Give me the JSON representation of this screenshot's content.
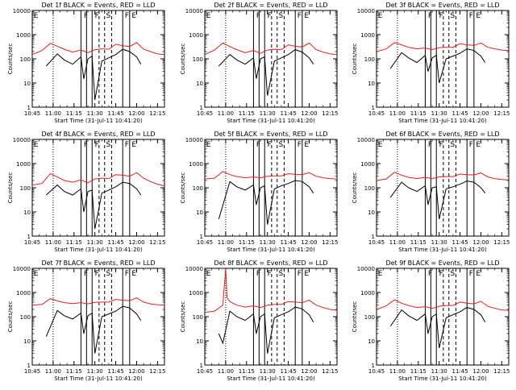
{
  "figure": {
    "ylabel": "Counts/sec",
    "x_ticks": [
      "10:45",
      "11:00",
      "11:15",
      "11:30",
      "11:45",
      "12:00",
      "12:15"
    ],
    "y_ticks": [
      "1",
      "10",
      "100",
      "1000",
      "10000"
    ],
    "start_label": "Start Time (31-Jul-11 10:41:20)",
    "colors": {
      "events": "#000000",
      "lld": "#e02020"
    }
  },
  "panels": [
    {
      "title": "Det 1f BLACK = Events, RED = LLD",
      "top_letters": [
        "E",
        "F",
        "F",
        "S",
        "F",
        "E"
      ]
    },
    {
      "title": "Det 2f BLACK = Events, RED = LLD",
      "top_letters": [
        "E",
        "F",
        "F",
        "S",
        "F",
        "E"
      ]
    },
    {
      "title": "Det 3f BLACK = Events, RED = LLD",
      "top_letters": [
        "E",
        "F",
        "F",
        "S",
        "F",
        "E"
      ]
    },
    {
      "title": "Det 4f BLACK = Events, RED = LLD",
      "top_letters": [
        "E",
        "F",
        "F",
        "S",
        "F",
        "E"
      ]
    },
    {
      "title": "Det 5f BLACK = Events, RED = LLD",
      "top_letters": [
        "E",
        "F",
        "F",
        "S",
        "F",
        "E"
      ]
    },
    {
      "title": "Det 6f BLACK = Events, RED = LLD",
      "top_letters": [
        "E",
        "F",
        "F",
        "S",
        "F",
        "E"
      ]
    },
    {
      "title": "Det 7f BLACK = Events, RED = LLD",
      "top_letters": [
        "E",
        "F",
        "F",
        "S",
        "F",
        "E"
      ]
    },
    {
      "title": "Det 8f BLACK = Events, RED = LLD",
      "top_letters": [
        "E",
        "F",
        "F",
        "S",
        "F",
        "E"
      ]
    },
    {
      "title": "Det 9f BLACK = Events, RED = LLD",
      "top_letters": [
        "E",
        "F",
        "F",
        "S",
        "F",
        "E"
      ]
    }
  ],
  "chart_data": {
    "type": "line",
    "yscale": "log",
    "ylim": [
      1,
      10000
    ],
    "xlim": [
      "10:45",
      "12:20"
    ],
    "grid": false,
    "markers": {
      "dotted": [
        "11:00"
      ],
      "solid": [
        "11:20",
        "11:24",
        "11:28",
        "11:50",
        "11:55"
      ],
      "dashed": [
        "11:33",
        "11:37",
        "11:42"
      ]
    },
    "panels": [
      {
        "detector": "1f",
        "series": [
          {
            "name": "LLD",
            "x": [
              "10:45",
              "10:52",
              "10:58",
              "11:03",
              "11:08",
              "11:14",
              "11:20",
              "11:25",
              "11:30",
              "11:35",
              "11:40",
              "11:45",
              "11:50",
              "11:55",
              "12:00",
              "12:05",
              "12:10",
              "12:15",
              "12:20"
            ],
            "y": [
              150,
              220,
              440,
              330,
              250,
              190,
              230,
              180,
              240,
              260,
              250,
              400,
              350,
              320,
              470,
              250,
              200,
              160,
              150
            ]
          },
          {
            "name": "Events",
            "x": [
              "10:55",
              "11:03",
              "11:08",
              "11:14",
              "11:20",
              "11:22",
              "11:25",
              "11:28",
              "11:30",
              "11:35",
              "11:40",
              "11:45",
              "11:50",
              "11:55",
              "12:00",
              "12:03"
            ],
            "y": [
              50,
              160,
              90,
              60,
              120,
              15,
              100,
              130,
              2,
              80,
              110,
              150,
              250,
              200,
              120,
              60
            ]
          }
        ]
      },
      {
        "detector": "2f",
        "series": [
          {
            "name": "LLD",
            "x": [
              "10:45",
              "10:52",
              "10:58",
              "11:03",
              "11:08",
              "11:14",
              "11:20",
              "11:25",
              "11:30",
              "11:35",
              "11:40",
              "11:45",
              "11:50",
              "11:55",
              "12:00",
              "12:05",
              "12:10",
              "12:15",
              "12:20"
            ],
            "y": [
              150,
              230,
              450,
              320,
              240,
              180,
              220,
              170,
              230,
              250,
              240,
              380,
              330,
              310,
              450,
              240,
              190,
              160,
              150
            ]
          },
          {
            "name": "Events",
            "x": [
              "10:55",
              "11:03",
              "11:08",
              "11:14",
              "11:20",
              "11:22",
              "11:25",
              "11:28",
              "11:30",
              "11:35",
              "11:40",
              "11:45",
              "11:50",
              "11:55",
              "12:00",
              "12:03"
            ],
            "y": [
              50,
              150,
              90,
              60,
              110,
              15,
              100,
              120,
              3,
              80,
              110,
              150,
              240,
              190,
              110,
              60
            ]
          }
        ]
      },
      {
        "detector": "3f",
        "series": [
          {
            "name": "LLD",
            "x": [
              "10:45",
              "10:52",
              "10:58",
              "11:03",
              "11:08",
              "11:14",
              "11:20",
              "11:25",
              "11:30",
              "11:35",
              "11:40",
              "11:45",
              "11:50",
              "11:55",
              "12:00",
              "12:05",
              "12:10",
              "12:15",
              "12:20"
            ],
            "y": [
              200,
              260,
              470,
              380,
              300,
              260,
              280,
              240,
              290,
              300,
              300,
              420,
              380,
              360,
              450,
              300,
              260,
              230,
              220
            ]
          },
          {
            "name": "Events",
            "x": [
              "10:55",
              "11:03",
              "11:08",
              "11:14",
              "11:20",
              "11:22",
              "11:25",
              "11:28",
              "11:30",
              "11:35",
              "11:40",
              "11:45",
              "11:50",
              "11:55",
              "12:00",
              "12:03"
            ],
            "y": [
              40,
              180,
              110,
              70,
              140,
              30,
              110,
              140,
              10,
              100,
              130,
              170,
              260,
              220,
              130,
              70
            ]
          }
        ]
      },
      {
        "detector": "4f",
        "series": [
          {
            "name": "LLD",
            "x": [
              "10:45",
              "10:52",
              "10:58",
              "11:03",
              "11:08",
              "11:14",
              "11:20",
              "11:25",
              "11:30",
              "11:35",
              "11:40",
              "11:45",
              "11:50",
              "11:55",
              "12:00",
              "12:05",
              "12:10",
              "12:15",
              "12:20"
            ],
            "y": [
              130,
              150,
              380,
              280,
              200,
              170,
              210,
              160,
              230,
              250,
              240,
              350,
              330,
              300,
              420,
              250,
              180,
              140,
              120
            ]
          },
          {
            "name": "Events",
            "x": [
              "10:55",
              "11:03",
              "11:08",
              "11:14",
              "11:20",
              "11:22",
              "11:25",
              "11:28",
              "11:30",
              "11:35",
              "11:40",
              "11:45",
              "11:50",
              "11:55",
              "12:00",
              "12:03"
            ],
            "y": [
              50,
              130,
              70,
              50,
              90,
              10,
              70,
              80,
              2,
              60,
              80,
              110,
              170,
              150,
              90,
              50
            ]
          }
        ]
      },
      {
        "detector": "5f",
        "series": [
          {
            "name": "LLD",
            "x": [
              "10:45",
              "10:52",
              "10:58",
              "11:03",
              "11:08",
              "11:14",
              "11:20",
              "11:25",
              "11:30",
              "11:35",
              "11:40",
              "11:45",
              "11:50",
              "11:55",
              "12:00",
              "12:05",
              "12:10",
              "12:15",
              "12:20"
            ],
            "y": [
              230,
              250,
              470,
              350,
              290,
              260,
              280,
              260,
              300,
              310,
              310,
              380,
              360,
              350,
              420,
              300,
              260,
              240,
              230
            ]
          },
          {
            "name": "Events",
            "x": [
              "10:55",
              "11:03",
              "11:08",
              "11:14",
              "11:20",
              "11:22",
              "11:25",
              "11:28",
              "11:30",
              "11:35",
              "11:40",
              "11:45",
              "11:50",
              "11:55",
              "12:00",
              "12:03"
            ],
            "y": [
              5,
              180,
              110,
              80,
              130,
              20,
              100,
              120,
              3,
              90,
              120,
              150,
              200,
              180,
              110,
              60
            ]
          }
        ]
      },
      {
        "detector": "6f",
        "series": [
          {
            "name": "LLD",
            "x": [
              "10:45",
              "10:52",
              "10:58",
              "11:03",
              "11:08",
              "11:14",
              "11:20",
              "11:25",
              "11:30",
              "11:35",
              "11:40",
              "11:45",
              "11:50",
              "11:55",
              "12:00",
              "12:05",
              "12:10",
              "12:15",
              "12:20"
            ],
            "y": [
              200,
              230,
              440,
              330,
              270,
              240,
              270,
              240,
              280,
              290,
              290,
              370,
              350,
              340,
              410,
              280,
              240,
              220,
              210
            ]
          },
          {
            "name": "Events",
            "x": [
              "10:55",
              "11:03",
              "11:08",
              "11:14",
              "11:20",
              "11:22",
              "11:25",
              "11:28",
              "11:30",
              "11:35",
              "11:40",
              "11:45",
              "11:50",
              "11:55",
              "12:00",
              "12:03"
            ],
            "y": [
              40,
              170,
              100,
              70,
              120,
              20,
              100,
              110,
              5,
              90,
              110,
              140,
              190,
              170,
              100,
              60
            ]
          }
        ]
      },
      {
        "detector": "7f",
        "series": [
          {
            "name": "LLD",
            "x": [
              "10:45",
              "10:52",
              "10:58",
              "11:03",
              "11:08",
              "11:14",
              "11:20",
              "11:25",
              "11:30",
              "11:35",
              "11:40",
              "11:45",
              "11:50",
              "11:55",
              "12:00",
              "12:05",
              "12:10",
              "12:15",
              "12:20"
            ],
            "y": [
              300,
              320,
              560,
              450,
              380,
              350,
              380,
              340,
              390,
              400,
              400,
              520,
              480,
              460,
              600,
              400,
              340,
              310,
              300
            ]
          },
          {
            "name": "Events",
            "x": [
              "10:55",
              "11:03",
              "11:08",
              "11:14",
              "11:20",
              "11:22",
              "11:25",
              "11:28",
              "11:30",
              "11:35",
              "11:40",
              "11:45",
              "11:50",
              "11:55",
              "12:00",
              "12:03"
            ],
            "y": [
              15,
              180,
              110,
              80,
              140,
              20,
              110,
              140,
              3,
              100,
              130,
              170,
              270,
              230,
              130,
              70
            ]
          }
        ]
      },
      {
        "detector": "8f",
        "series": [
          {
            "name": "LLD",
            "x": [
              "10:45",
              "10:52",
              "10:58",
              "11:00",
              "11:01",
              "11:03",
              "11:08",
              "11:14",
              "11:20",
              "11:25",
              "11:30",
              "11:35",
              "11:40",
              "11:45",
              "11:50",
              "11:55",
              "12:00",
              "12:05",
              "12:10",
              "12:15",
              "12:20"
            ],
            "y": [
              150,
              170,
              300,
              10000,
              600,
              420,
              300,
              250,
              280,
              240,
              300,
              320,
              320,
              420,
              400,
              380,
              480,
              300,
              240,
              200,
              180
            ]
          },
          {
            "name": "Events",
            "x": [
              "10:55",
              "10:58",
              "11:03",
              "11:08",
              "11:14",
              "11:20",
              "11:22",
              "11:25",
              "11:28",
              "11:30",
              "11:35",
              "11:40",
              "11:45",
              "11:50",
              "11:55",
              "12:00",
              "12:03"
            ],
            "y": [
              20,
              8,
              170,
              100,
              70,
              130,
              20,
              100,
              130,
              3,
              90,
              120,
              160,
              250,
              210,
              120,
              60
            ]
          }
        ]
      },
      {
        "detector": "9f",
        "series": [
          {
            "name": "LLD",
            "x": [
              "10:45",
              "10:52",
              "10:58",
              "11:03",
              "11:08",
              "11:14",
              "11:20",
              "11:25",
              "11:30",
              "11:35",
              "11:40",
              "11:45",
              "11:50",
              "11:55",
              "12:00",
              "12:05",
              "12:10",
              "12:15",
              "12:20"
            ],
            "y": [
              200,
              280,
              500,
              360,
              290,
              240,
              260,
              220,
              270,
              290,
              290,
              400,
              360,
              340,
              430,
              270,
              220,
              190,
              180
            ]
          },
          {
            "name": "Events",
            "x": [
              "10:55",
              "11:03",
              "11:08",
              "11:14",
              "11:20",
              "11:22",
              "11:25",
              "11:28",
              "11:30",
              "11:35",
              "11:40",
              "11:45",
              "11:50",
              "11:55",
              "12:00",
              "12:03"
            ],
            "y": [
              40,
              190,
              110,
              70,
              130,
              20,
              100,
              130,
              5,
              90,
              120,
              160,
              240,
              200,
              120,
              60
            ]
          }
        ]
      }
    ]
  }
}
